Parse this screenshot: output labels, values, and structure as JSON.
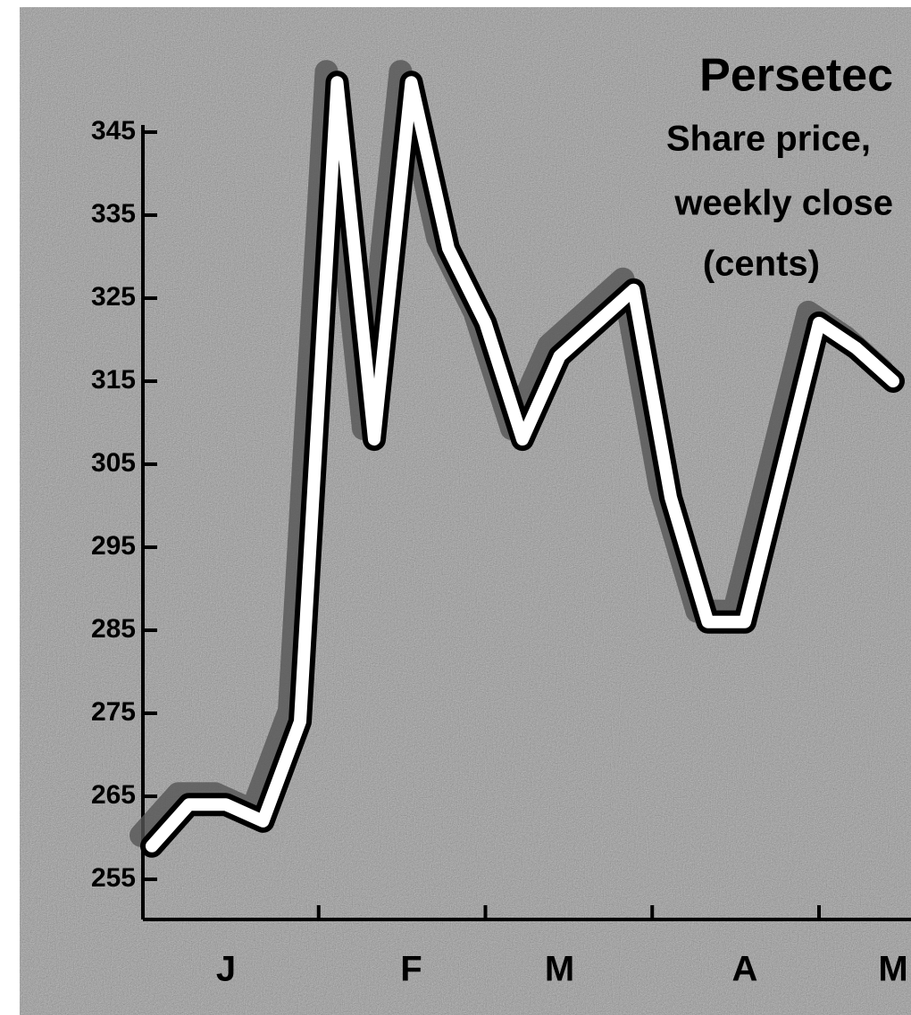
{
  "chart_data": {
    "type": "line",
    "title": "Persetec",
    "subtitle": [
      "Share price,",
      "weekly close",
      "(cents)"
    ],
    "categories": [
      null,
      null,
      "J",
      null,
      null,
      null,
      null,
      "F",
      null,
      null,
      null,
      "M",
      null,
      null,
      null,
      null,
      "A",
      null,
      null,
      null,
      "M"
    ],
    "series": [
      {
        "name": "Persetec",
        "color": "#ffffff",
        "values": [
          259,
          264,
          264,
          262,
          274,
          351,
          308,
          351,
          331,
          322,
          308,
          318,
          322,
          326,
          301,
          286,
          286,
          304,
          322,
          319,
          315
        ]
      }
    ],
    "ylim": [
      255,
      345
    ],
    "yticks": [
      255,
      265,
      275,
      285,
      295,
      305,
      315,
      325,
      335,
      345
    ],
    "grid": false
  }
}
